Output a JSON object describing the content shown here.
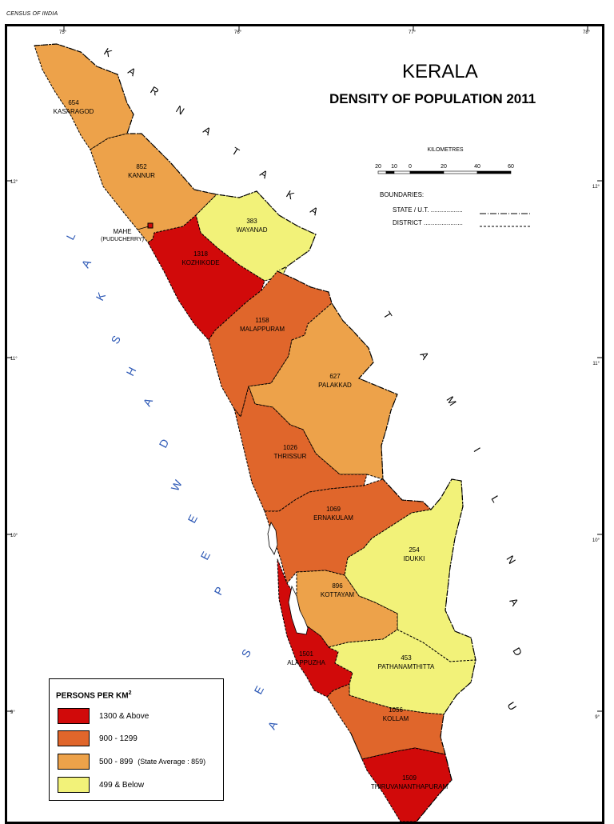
{
  "header": {
    "census": "CENSUS OF INDIA"
  },
  "map": {
    "title": "KERALA",
    "subtitle": "DENSITY OF POPULATION  2011",
    "scale": {
      "unit": "KILOMETRES",
      "ticks": [
        "20",
        "10",
        "0",
        "20",
        "40",
        "60"
      ]
    },
    "boundaries": {
      "heading": "BOUNDARIES:",
      "state": "STATE / U.T. ..................",
      "district": "DISTRICT ......................"
    },
    "graticule": {
      "lon": [
        "75°",
        "76°",
        "77°",
        "78°"
      ],
      "lat": [
        "12°",
        "11°",
        "10°",
        "9°"
      ]
    },
    "neighbours": {
      "karnataka": [
        "K",
        "A",
        "R",
        "N",
        "A",
        "T",
        "A",
        "K",
        "A"
      ],
      "tamil_nadu": [
        "T",
        "A",
        "M",
        "I",
        "L",
        "N",
        "A",
        "D",
        "U"
      ],
      "sea": [
        "L",
        "A",
        "K",
        "S",
        "H",
        "A",
        "D",
        "W",
        "E",
        "E",
        "P",
        "S",
        "E",
        "A"
      ]
    },
    "mahe": {
      "name": "MAHE",
      "note": "(PUDUCHERRY)"
    },
    "classes": {
      "high": "#d10a0a",
      "upper": "#e0662b",
      "mid": "#eda24a",
      "low": "#f2f279"
    },
    "districts": [
      {
        "name": "KASARAGOD",
        "value": "654",
        "class": "mid"
      },
      {
        "name": "KANNUR",
        "value": "852",
        "class": "mid"
      },
      {
        "name": "WAYANAD",
        "value": "383",
        "class": "low"
      },
      {
        "name": "KOZHIKODE",
        "value": "1318",
        "class": "high"
      },
      {
        "name": "MALAPPURAM",
        "value": "1158",
        "class": "upper"
      },
      {
        "name": "PALAKKAD",
        "value": "627",
        "class": "mid"
      },
      {
        "name": "THRISSUR",
        "value": "1026",
        "class": "upper"
      },
      {
        "name": "ERNAKULAM",
        "value": "1069",
        "class": "upper"
      },
      {
        "name": "IDUKKI",
        "value": "254",
        "class": "low"
      },
      {
        "name": "KOTTAYAM",
        "value": "896",
        "class": "mid"
      },
      {
        "name": "ALAPPUZHA",
        "value": "1501",
        "class": "high"
      },
      {
        "name": "PATHANAMTHITTA",
        "value": "453",
        "class": "low"
      },
      {
        "name": "KOLLAM",
        "value": "1056",
        "class": "upper"
      },
      {
        "name": "THIRUVANANTHAPURAM",
        "value": "1509",
        "class": "high"
      }
    ]
  },
  "legend": {
    "title": "PERSONS PER KM",
    "title_sup": "2",
    "items": [
      {
        "label": "1300 & Above",
        "note": "",
        "color": "#d10a0a"
      },
      {
        "label": "900 - 1299",
        "note": "",
        "color": "#e0662b"
      },
      {
        "label": "500 - 899",
        "note": "(State Average : 859)",
        "color": "#eda24a"
      },
      {
        "label": "499 & Below",
        "note": "",
        "color": "#f2f279"
      }
    ]
  }
}
